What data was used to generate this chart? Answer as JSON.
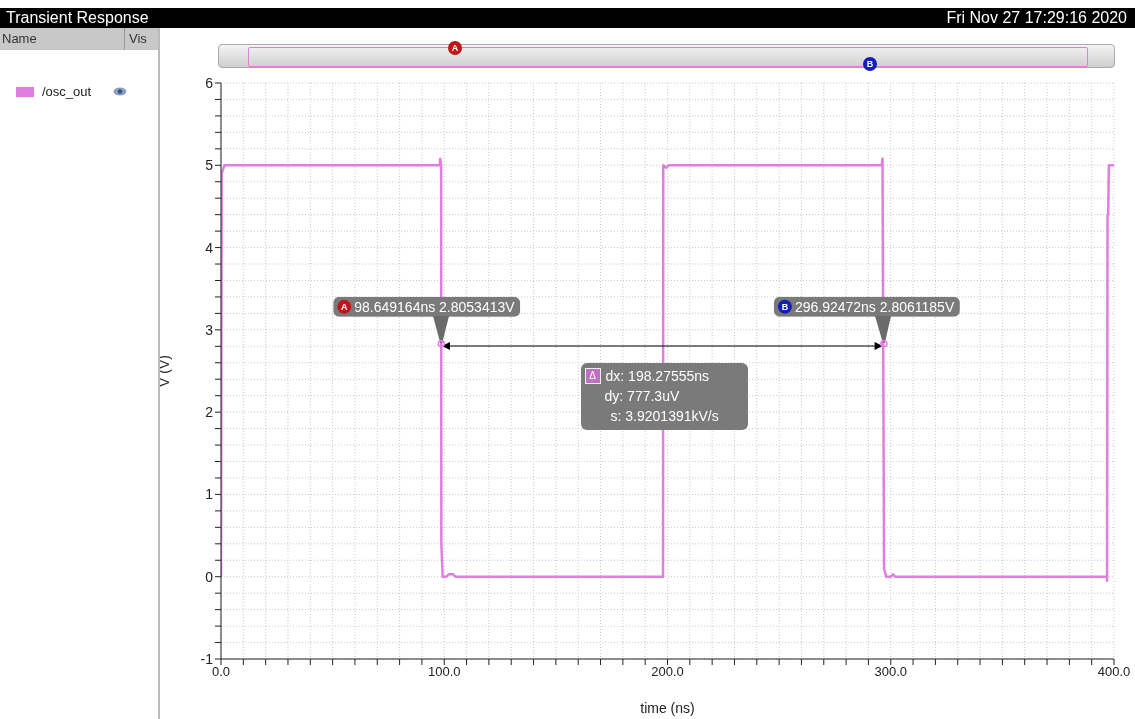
{
  "chart_data": {
    "type": "line",
    "title": "Transient Response",
    "xlabel": "time (ns)",
    "ylabel": "V (V)",
    "annotations": [
      "Fri Nov 27 17:29:16 2020",
      "Name",
      "Vis",
      {
        "text": "98.649164ns 2.8053413V",
        "x": 98.649164,
        "y": 2.8053413
      },
      {
        "text": "296.92472ns 2.8061185V",
        "x": 296.92472,
        "y": 2.8061185
      },
      "dx: 198.27555ns",
      "dy: 777.3uV",
      "s: 3.9201391kV/s",
      "A",
      "B",
      "Δ"
    ],
    "xlim": [
      0,
      400
    ],
    "xticks": [
      {
        "value": 0,
        "label": "0.0"
      },
      {
        "value": 10,
        "label": null
      },
      {
        "value": 20,
        "label": null
      },
      {
        "value": 30,
        "label": null
      },
      {
        "value": 40,
        "label": null
      },
      {
        "value": 50,
        "label": null
      },
      {
        "value": 60,
        "label": null
      },
      {
        "value": 70,
        "label": null
      },
      {
        "value": 80,
        "label": null
      },
      {
        "value": 90,
        "label": null
      },
      {
        "value": 100,
        "label": "100.0"
      },
      {
        "value": 110,
        "label": null
      },
      {
        "value": 120,
        "label": null
      },
      {
        "value": 130,
        "label": null
      },
      {
        "value": 140,
        "label": null
      },
      {
        "value": 150,
        "label": null
      },
      {
        "value": 160,
        "label": null
      },
      {
        "value": 170,
        "label": null
      },
      {
        "value": 180,
        "label": null
      },
      {
        "value": 190,
        "label": null
      },
      {
        "value": 200,
        "label": "200.0"
      },
      {
        "value": 210,
        "label": null
      },
      {
        "value": 220,
        "label": null
      },
      {
        "value": 230,
        "label": null
      },
      {
        "value": 240,
        "label": null
      },
      {
        "value": 250,
        "label": null
      },
      {
        "value": 260,
        "label": null
      },
      {
        "value": 270,
        "label": null
      },
      {
        "value": 280,
        "label": null
      },
      {
        "value": 290,
        "label": null
      },
      {
        "value": 300,
        "label": "300.0"
      },
      {
        "value": 310,
        "label": null
      },
      {
        "value": 320,
        "label": null
      },
      {
        "value": 330,
        "label": null
      },
      {
        "value": 340,
        "label": null
      },
      {
        "value": 350,
        "label": null
      },
      {
        "value": 360,
        "label": null
      },
      {
        "value": 370,
        "label": null
      },
      {
        "value": 380,
        "label": null
      },
      {
        "value": 390,
        "label": null
      },
      {
        "value": 400,
        "label": "400.0"
      }
    ],
    "ylim": [
      -1,
      6
    ],
    "yticks": [
      -1,
      {
        "value": -0.8,
        "label": null
      },
      {
        "value": -0.6,
        "label": null
      },
      {
        "value": -0.4,
        "label": null
      },
      {
        "value": -0.2,
        "label": null
      },
      0,
      {
        "value": 0.2,
        "label": null
      },
      {
        "value": 0.4,
        "label": null
      },
      {
        "value": 0.6,
        "label": null
      },
      {
        "value": 0.8,
        "label": null
      },
      1,
      {
        "value": 1.2,
        "label": null
      },
      {
        "value": 1.4,
        "label": null
      },
      {
        "value": 1.6,
        "label": null
      },
      {
        "value": 1.8,
        "label": null
      },
      2,
      {
        "value": 2.2,
        "label": null
      },
      {
        "value": 2.4,
        "label": null
      },
      {
        "value": 2.6,
        "label": null
      },
      {
        "value": 2.8,
        "label": null
      },
      3,
      {
        "value": 3.2,
        "label": null
      },
      {
        "value": 3.4,
        "label": null
      },
      {
        "value": 3.6,
        "label": null
      },
      {
        "value": 3.8,
        "label": null
      },
      4,
      {
        "value": 4.2,
        "label": null
      },
      {
        "value": 4.4,
        "label": null
      },
      {
        "value": 4.6,
        "label": null
      },
      {
        "value": 4.8,
        "label": null
      },
      5,
      {
        "value": 5.2,
        "label": null
      },
      {
        "value": 5.4,
        "label": null
      },
      {
        "value": 5.6,
        "label": null
      },
      {
        "value": 5.8,
        "label": null
      },
      6
    ],
    "grid": true,
    "legend": "left",
    "line_style": "solid",
    "x": [
      0,
      0.3,
      1.5,
      98,
      98.2,
      98.6,
      98.7,
      99.3,
      101,
      102,
      104,
      105,
      198,
      198.1,
      199.5,
      200.5,
      296,
      296.3,
      296.5,
      297,
      298,
      300,
      301,
      302,
      396.8,
      396.9,
      397.1,
      397.4,
      397.7,
      400
    ],
    "series": [
      {
        "name": "/osc_out",
        "color": "#e07ee0",
        "values": [
          0,
          4.9,
          5,
          5,
          5.08,
          5,
          0.4,
          0,
          0,
          0.03,
          0.03,
          0,
          0,
          5,
          4.97,
          5,
          5,
          5.08,
          3.7,
          0.1,
          0,
          0,
          0.03,
          0,
          0,
          -0.05,
          4.4,
          4.4,
          5,
          5
        ]
      }
    ]
  }
}
